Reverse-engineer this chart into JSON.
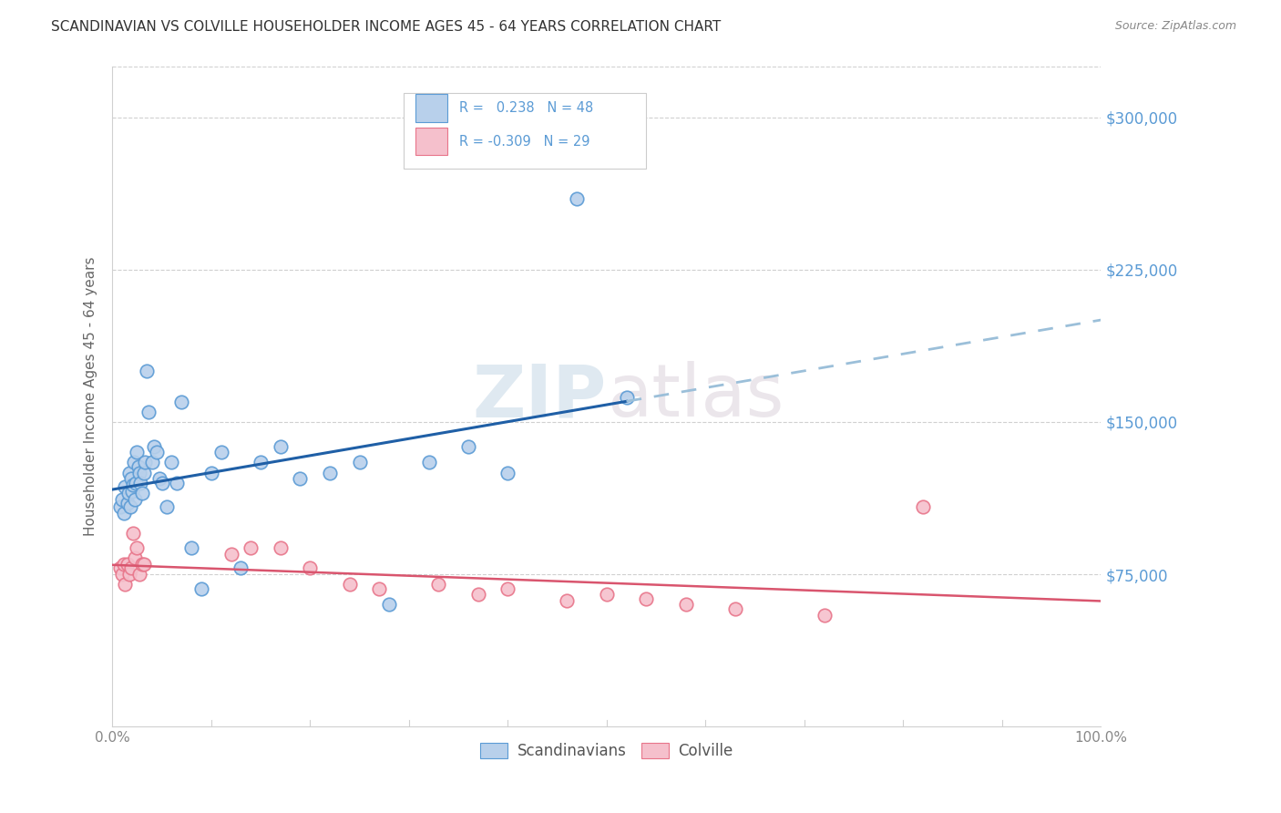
{
  "title": "SCANDINAVIAN VS COLVILLE HOUSEHOLDER INCOME AGES 45 - 64 YEARS CORRELATION CHART",
  "source": "Source: ZipAtlas.com",
  "ylabel": "Householder Income Ages 45 - 64 years",
  "xlim": [
    0.0,
    1.0
  ],
  "ylim": [
    0,
    325000
  ],
  "yticks": [
    75000,
    150000,
    225000,
    300000
  ],
  "ytick_labels": [
    "$75,000",
    "$150,000",
    "$225,000",
    "$300,000"
  ],
  "xtick_labels": [
    "0.0%",
    "100.0%"
  ],
  "watermark_zip": "ZIP",
  "watermark_atlas": "atlas",
  "legend_row1": "R =   0.238   N = 48",
  "legend_row2": "R = -0.309   N = 29",
  "legend_labels": [
    "Scandinavians",
    "Colville"
  ],
  "blue_edge_color": "#5b9bd5",
  "pink_edge_color": "#e8758a",
  "blue_fill_color": "#b8d0eb",
  "pink_fill_color": "#f5c0cc",
  "blue_line_color": "#1f5fa6",
  "pink_line_color": "#d9556e",
  "blue_dash_color": "#9bbfd9",
  "grid_color": "#d0d0d0",
  "title_color": "#333333",
  "source_color": "#888888",
  "ytick_color": "#5b9bd5",
  "xtick_color": "#888888",
  "ylabel_color": "#666666",
  "scandinavian_x": [
    0.008,
    0.01,
    0.012,
    0.013,
    0.015,
    0.016,
    0.017,
    0.018,
    0.019,
    0.02,
    0.021,
    0.022,
    0.023,
    0.024,
    0.025,
    0.026,
    0.027,
    0.028,
    0.03,
    0.032,
    0.033,
    0.035,
    0.037,
    0.04,
    0.042,
    0.045,
    0.048,
    0.05,
    0.055,
    0.06,
    0.065,
    0.07,
    0.08,
    0.09,
    0.1,
    0.11,
    0.13,
    0.15,
    0.17,
    0.19,
    0.22,
    0.25,
    0.28,
    0.32,
    0.36,
    0.4,
    0.47,
    0.52
  ],
  "scandinavian_y": [
    108000,
    112000,
    105000,
    118000,
    110000,
    115000,
    125000,
    108000,
    122000,
    116000,
    119000,
    130000,
    112000,
    120000,
    135000,
    128000,
    125000,
    120000,
    115000,
    125000,
    130000,
    175000,
    155000,
    130000,
    138000,
    135000,
    122000,
    120000,
    108000,
    130000,
    120000,
    160000,
    88000,
    68000,
    125000,
    135000,
    78000,
    130000,
    138000,
    122000,
    125000,
    130000,
    60000,
    130000,
    138000,
    125000,
    260000,
    162000
  ],
  "colville_x": [
    0.008,
    0.01,
    0.012,
    0.013,
    0.015,
    0.017,
    0.019,
    0.021,
    0.023,
    0.025,
    0.027,
    0.03,
    0.032,
    0.12,
    0.14,
    0.17,
    0.2,
    0.24,
    0.27,
    0.33,
    0.37,
    0.4,
    0.46,
    0.5,
    0.54,
    0.58,
    0.63,
    0.72,
    0.82
  ],
  "colville_y": [
    78000,
    75000,
    80000,
    70000,
    80000,
    75000,
    78000,
    95000,
    83000,
    88000,
    75000,
    80000,
    80000,
    85000,
    88000,
    88000,
    78000,
    70000,
    68000,
    70000,
    65000,
    68000,
    62000,
    65000,
    63000,
    60000,
    58000,
    55000,
    108000
  ]
}
